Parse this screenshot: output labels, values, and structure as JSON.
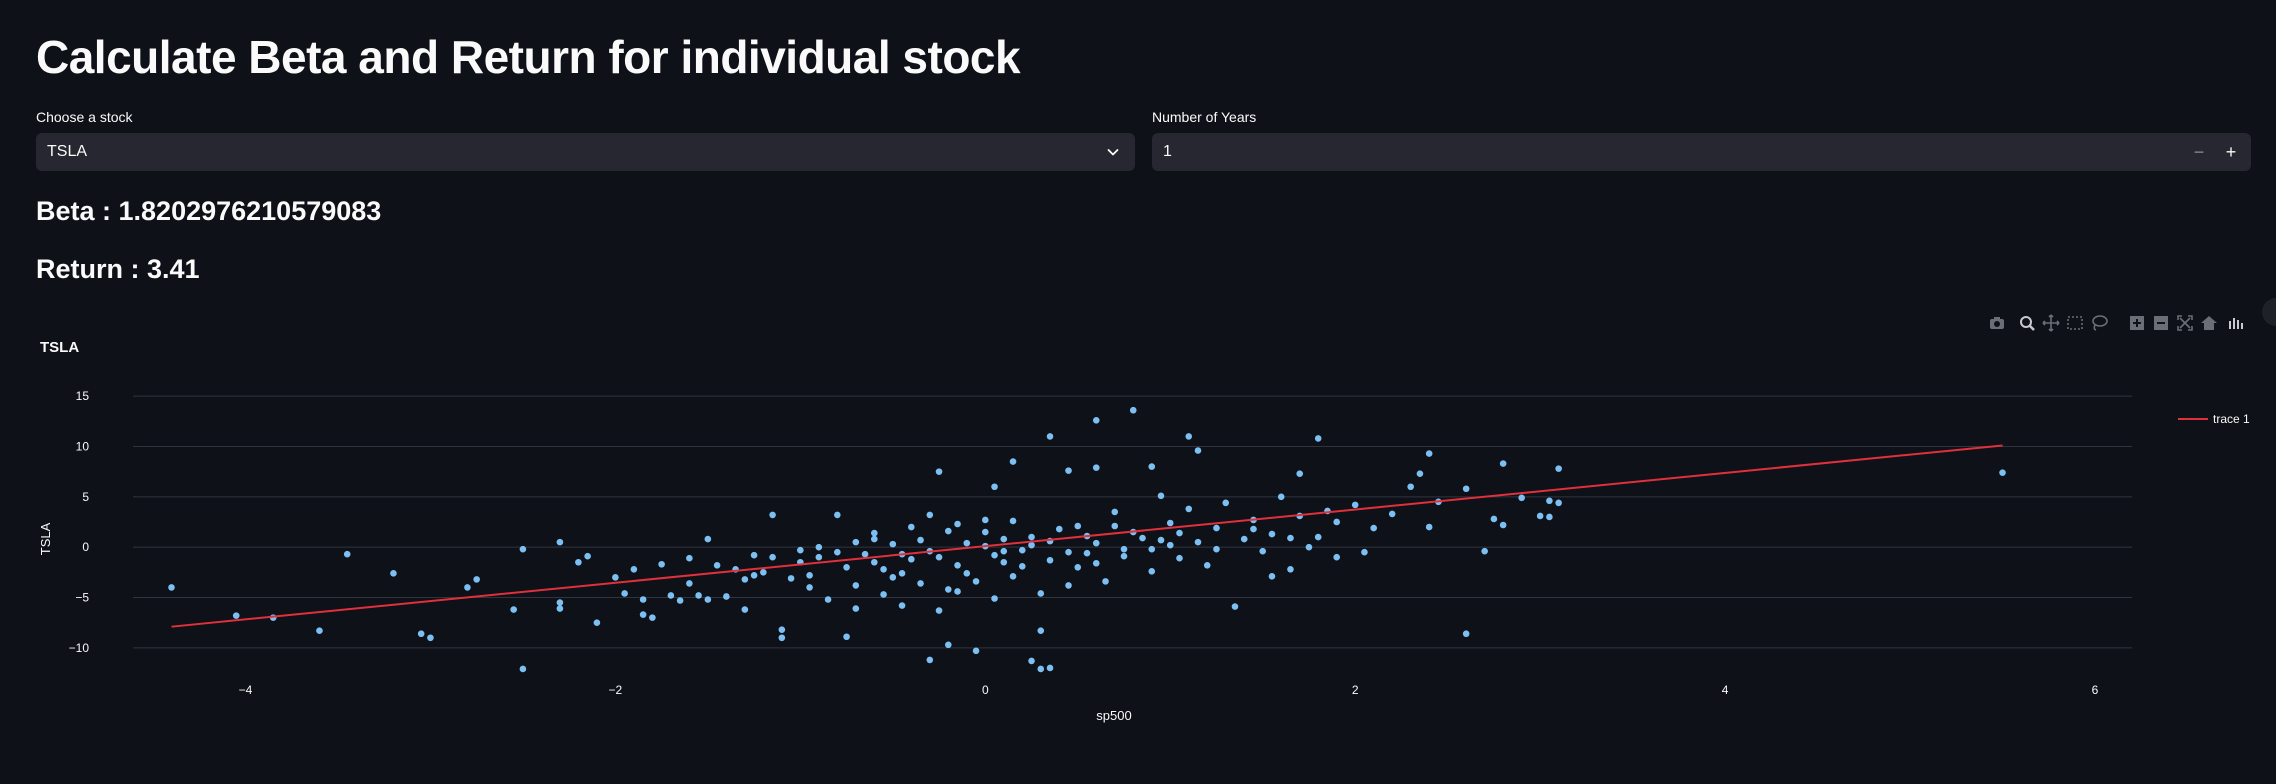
{
  "page": {
    "title": "Calculate Beta and Return for individual stock"
  },
  "controls": {
    "stock_label": "Choose a stock",
    "stock_value": "TSLA",
    "years_label": "Number of Years",
    "years_value": "1",
    "minus_symbol": "−",
    "plus_symbol": "+"
  },
  "metrics": {
    "beta_text": "Beta : 1.8202976210579083",
    "return_text": "Return : 3.41"
  },
  "modebar_icons": [
    "camera-icon",
    "zoom-icon",
    "pan-icon",
    "box-select-icon",
    "lasso-icon",
    "zoom-in-icon",
    "zoom-out-icon",
    "autoscale-icon",
    "home-icon",
    "plotly-logo-icon"
  ],
  "colors": {
    "background": "#0e1117",
    "input_bg": "#262730",
    "points": "#83c9ff",
    "line": "#e0303c",
    "grid": "#31333f"
  },
  "chart_data": {
    "type": "scatter",
    "title": "TSLA",
    "xlabel": "sp500",
    "ylabel": "TSLA",
    "xlim": [
      -4.5,
      6.2
    ],
    "ylim": [
      -12.5,
      17
    ],
    "x_ticks": [
      -4,
      -2,
      0,
      2,
      4,
      6
    ],
    "y_ticks": [
      -10,
      -5,
      0,
      5,
      10,
      15
    ],
    "x_tick_labels": [
      "−4",
      "−2",
      "0",
      "2",
      "4",
      "6"
    ],
    "y_tick_labels": [
      "−10",
      "−5",
      "0",
      "5",
      "10",
      "15"
    ],
    "legend": {
      "position": "top-right",
      "entries": [
        "trace 1"
      ]
    },
    "grid": "horizontal",
    "series": [
      {
        "kind": "markers",
        "points": [
          [
            -4.4,
            -4.0
          ],
          [
            -4.05,
            -6.8
          ],
          [
            -3.85,
            -7.0
          ],
          [
            -3.6,
            -8.3
          ],
          [
            -3.45,
            -0.7
          ],
          [
            -3.2,
            -2.6
          ],
          [
            -3.05,
            -8.6
          ],
          [
            -3.0,
            -9.0
          ],
          [
            -2.8,
            -4.0
          ],
          [
            -2.75,
            -3.2
          ],
          [
            -2.55,
            -6.2
          ],
          [
            -2.5,
            -0.2
          ],
          [
            -2.5,
            -12.1
          ],
          [
            -2.3,
            0.5
          ],
          [
            -2.3,
            -5.5
          ],
          [
            -2.2,
            -1.5
          ],
          [
            -2.15,
            -0.9
          ],
          [
            -2.1,
            -7.5
          ],
          [
            -2.0,
            -3.0
          ],
          [
            -1.9,
            -2.2
          ],
          [
            -1.85,
            -5.2
          ],
          [
            -1.85,
            -6.7
          ],
          [
            -1.8,
            -7.0
          ],
          [
            -1.75,
            -1.7
          ],
          [
            -1.7,
            -4.8
          ],
          [
            -1.65,
            -5.3
          ],
          [
            -1.6,
            -3.6
          ],
          [
            -1.55,
            -4.8
          ],
          [
            -1.5,
            -5.2
          ],
          [
            -1.5,
            0.8
          ],
          [
            -1.45,
            -1.8
          ],
          [
            -1.4,
            -4.9
          ],
          [
            -1.35,
            -2.2
          ],
          [
            -1.3,
            -3.2
          ],
          [
            -1.3,
            -6.2
          ],
          [
            -1.25,
            -0.8
          ],
          [
            -1.2,
            -2.5
          ],
          [
            -1.15,
            -1.0
          ],
          [
            -1.1,
            -8.2
          ],
          [
            -1.1,
            -9.0
          ],
          [
            -1.05,
            -3.1
          ],
          [
            -1.0,
            -0.3
          ],
          [
            -1.0,
            -1.5
          ],
          [
            -0.95,
            -2.8
          ],
          [
            -0.9,
            0.0
          ],
          [
            -0.9,
            -1.0
          ],
          [
            -0.85,
            -5.2
          ],
          [
            -0.8,
            3.2
          ],
          [
            -0.8,
            -0.5
          ],
          [
            -0.75,
            -2.0
          ],
          [
            -0.75,
            -8.9
          ],
          [
            -0.7,
            -6.1
          ],
          [
            -0.7,
            -3.8
          ],
          [
            -0.65,
            -0.7
          ],
          [
            -0.6,
            0.8
          ],
          [
            -0.6,
            -1.5
          ],
          [
            -0.55,
            -4.7
          ],
          [
            -0.5,
            -3.0
          ],
          [
            -0.5,
            0.3
          ],
          [
            -0.45,
            -5.8
          ],
          [
            -0.45,
            -2.6
          ],
          [
            -0.4,
            2.0
          ],
          [
            -0.4,
            -1.2
          ],
          [
            -0.35,
            -3.6
          ],
          [
            -0.3,
            -0.4
          ],
          [
            -0.3,
            3.2
          ],
          [
            -0.25,
            -6.3
          ],
          [
            -0.2,
            -4.2
          ],
          [
            -0.2,
            1.6
          ],
          [
            -0.15,
            -1.8
          ],
          [
            -0.1,
            0.4
          ],
          [
            -0.1,
            -2.6
          ],
          [
            -0.05,
            -3.4
          ],
          [
            0.0,
            0.1
          ],
          [
            0.0,
            1.5
          ],
          [
            0.05,
            -0.8
          ],
          [
            0.05,
            -5.1
          ],
          [
            0.1,
            -1.5
          ],
          [
            0.1,
            0.8
          ],
          [
            0.15,
            2.6
          ],
          [
            0.2,
            -1.9
          ],
          [
            0.2,
            -0.3
          ],
          [
            0.25,
            1.0
          ],
          [
            0.3,
            -4.6
          ],
          [
            0.3,
            -8.3
          ],
          [
            0.35,
            0.6
          ],
          [
            0.4,
            1.8
          ],
          [
            0.45,
            -0.5
          ],
          [
            0.5,
            2.1
          ],
          [
            0.55,
            -0.6
          ],
          [
            0.6,
            -1.6
          ],
          [
            0.6,
            0.4
          ],
          [
            0.65,
            -3.4
          ],
          [
            0.7,
            3.5
          ],
          [
            0.75,
            -0.2
          ],
          [
            0.8,
            1.5
          ],
          [
            0.85,
            0.9
          ],
          [
            0.9,
            -2.4
          ],
          [
            0.95,
            5.1
          ],
          [
            1.0,
            0.2
          ],
          [
            1.0,
            2.4
          ],
          [
            1.05,
            -1.1
          ],
          [
            1.1,
            3.8
          ],
          [
            1.15,
            0.5
          ],
          [
            1.2,
            -1.8
          ],
          [
            1.25,
            1.9
          ],
          [
            1.3,
            4.4
          ],
          [
            1.35,
            -5.9
          ],
          [
            1.4,
            0.8
          ],
          [
            1.45,
            2.7
          ],
          [
            1.5,
            -0.4
          ],
          [
            1.55,
            1.3
          ],
          [
            1.6,
            5.0
          ],
          [
            1.65,
            -2.2
          ],
          [
            1.7,
            3.1
          ],
          [
            1.75,
            0.0
          ],
          [
            1.8,
            1.0
          ],
          [
            1.9,
            2.5
          ],
          [
            2.0,
            4.2
          ],
          [
            2.05,
            -0.5
          ],
          [
            2.1,
            1.9
          ],
          [
            2.2,
            3.3
          ],
          [
            2.3,
            6.0
          ],
          [
            2.35,
            7.3
          ],
          [
            2.4,
            2.0
          ],
          [
            2.45,
            4.5
          ],
          [
            2.6,
            5.8
          ],
          [
            2.7,
            -0.4
          ],
          [
            2.75,
            2.8
          ],
          [
            2.8,
            8.3
          ],
          [
            2.9,
            4.9
          ],
          [
            3.0,
            3.1
          ],
          [
            3.05,
            4.6
          ],
          [
            2.4,
            9.3
          ],
          [
            2.6,
            -8.6
          ],
          [
            2.8,
            2.2
          ],
          [
            3.1,
            4.4
          ],
          [
            3.1,
            7.8
          ],
          [
            3.05,
            3.0
          ],
          [
            5.5,
            7.4
          ],
          [
            -0.2,
            -9.7
          ],
          [
            -0.05,
            -10.3
          ],
          [
            0.25,
            -11.3
          ],
          [
            0.3,
            -12.1
          ],
          [
            0.35,
            -12.0
          ],
          [
            -0.3,
            -11.2
          ],
          [
            0.35,
            11.0
          ],
          [
            0.6,
            12.6
          ],
          [
            0.8,
            13.6
          ],
          [
            1.1,
            11.0
          ],
          [
            1.8,
            10.8
          ],
          [
            0.45,
            7.6
          ],
          [
            -0.25,
            7.5
          ],
          [
            -1.15,
            3.2
          ],
          [
            0.05,
            6.0
          ],
          [
            0.15,
            8.5
          ],
          [
            1.15,
            9.6
          ],
          [
            1.7,
            7.3
          ],
          [
            0.6,
            7.9
          ],
          [
            0.9,
            8.0
          ],
          [
            -0.6,
            1.4
          ],
          [
            -0.35,
            0.7
          ],
          [
            -0.15,
            2.3
          ],
          [
            0.1,
            -0.4
          ],
          [
            0.35,
            -1.3
          ],
          [
            0.55,
            1.1
          ],
          [
            0.75,
            -0.9
          ],
          [
            0.95,
            0.7
          ],
          [
            -0.7,
            0.5
          ],
          [
            -0.45,
            -0.7
          ],
          [
            -0.25,
            -1.0
          ],
          [
            0.0,
            2.7
          ],
          [
            0.25,
            0.2
          ],
          [
            0.5,
            -2.0
          ],
          [
            0.7,
            2.1
          ],
          [
            0.9,
            -0.2
          ],
          [
            1.05,
            1.4
          ],
          [
            1.25,
            -0.2
          ],
          [
            1.45,
            1.8
          ],
          [
            1.65,
            0.9
          ],
          [
            1.85,
            3.6
          ],
          [
            -1.6,
            -1.1
          ],
          [
            -1.95,
            -4.6
          ],
          [
            -2.3,
            -6.1
          ],
          [
            -0.95,
            -4.0
          ],
          [
            -1.25,
            -2.8
          ],
          [
            -0.55,
            -2.2
          ],
          [
            -0.15,
            -4.4
          ],
          [
            0.15,
            -2.9
          ],
          [
            0.45,
            -3.8
          ],
          [
            1.55,
            -2.9
          ],
          [
            1.9,
            -1.0
          ]
        ]
      },
      {
        "name": "trace 1",
        "kind": "line",
        "x": [
          -4.4,
          5.5
        ],
        "y": [
          -7.9,
          10.1
        ]
      }
    ]
  }
}
